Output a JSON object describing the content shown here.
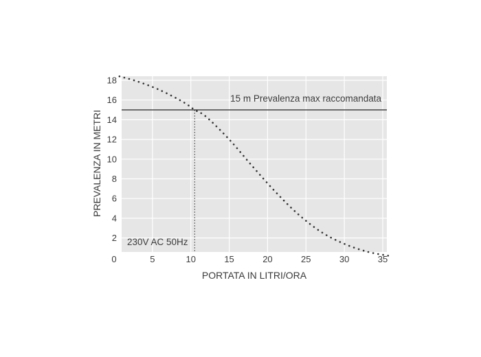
{
  "chart_data": {
    "type": "scatter",
    "xlabel": "PORTATA IN LITRI/ORA",
    "ylabel": "PREVALENZA IN METRI",
    "xlim": [
      0,
      36
    ],
    "ylim": [
      0,
      18
    ],
    "xticks": [
      0,
      5,
      10,
      15,
      20,
      25,
      30,
      35
    ],
    "yticks": [
      2,
      4,
      6,
      8,
      10,
      12,
      14,
      16,
      18
    ],
    "grid": true,
    "series": [
      {
        "style": "dotted",
        "color": "#333333",
        "x": [
          0.7,
          3,
          6,
          9,
          10.5,
          12,
          15,
          18,
          21,
          24,
          27,
          30,
          33,
          35.7
        ],
        "y": [
          18.4,
          17.9,
          17.0,
          15.8,
          15.0,
          14.3,
          12.0,
          9.3,
          6.7,
          4.4,
          2.6,
          1.4,
          0.6,
          0.2
        ]
      }
    ],
    "reference_line": {
      "y": 15,
      "label": "15 m Prevalenza max raccomandata",
      "color": "#333333"
    },
    "vertical_marker": {
      "x": 10.5,
      "style": "dashed"
    },
    "annotation": "230V AC 50Hz",
    "colors": {
      "plot_background": "#e6e6e6",
      "grid": "#ffffff",
      "text": "#3a3a3a"
    }
  }
}
